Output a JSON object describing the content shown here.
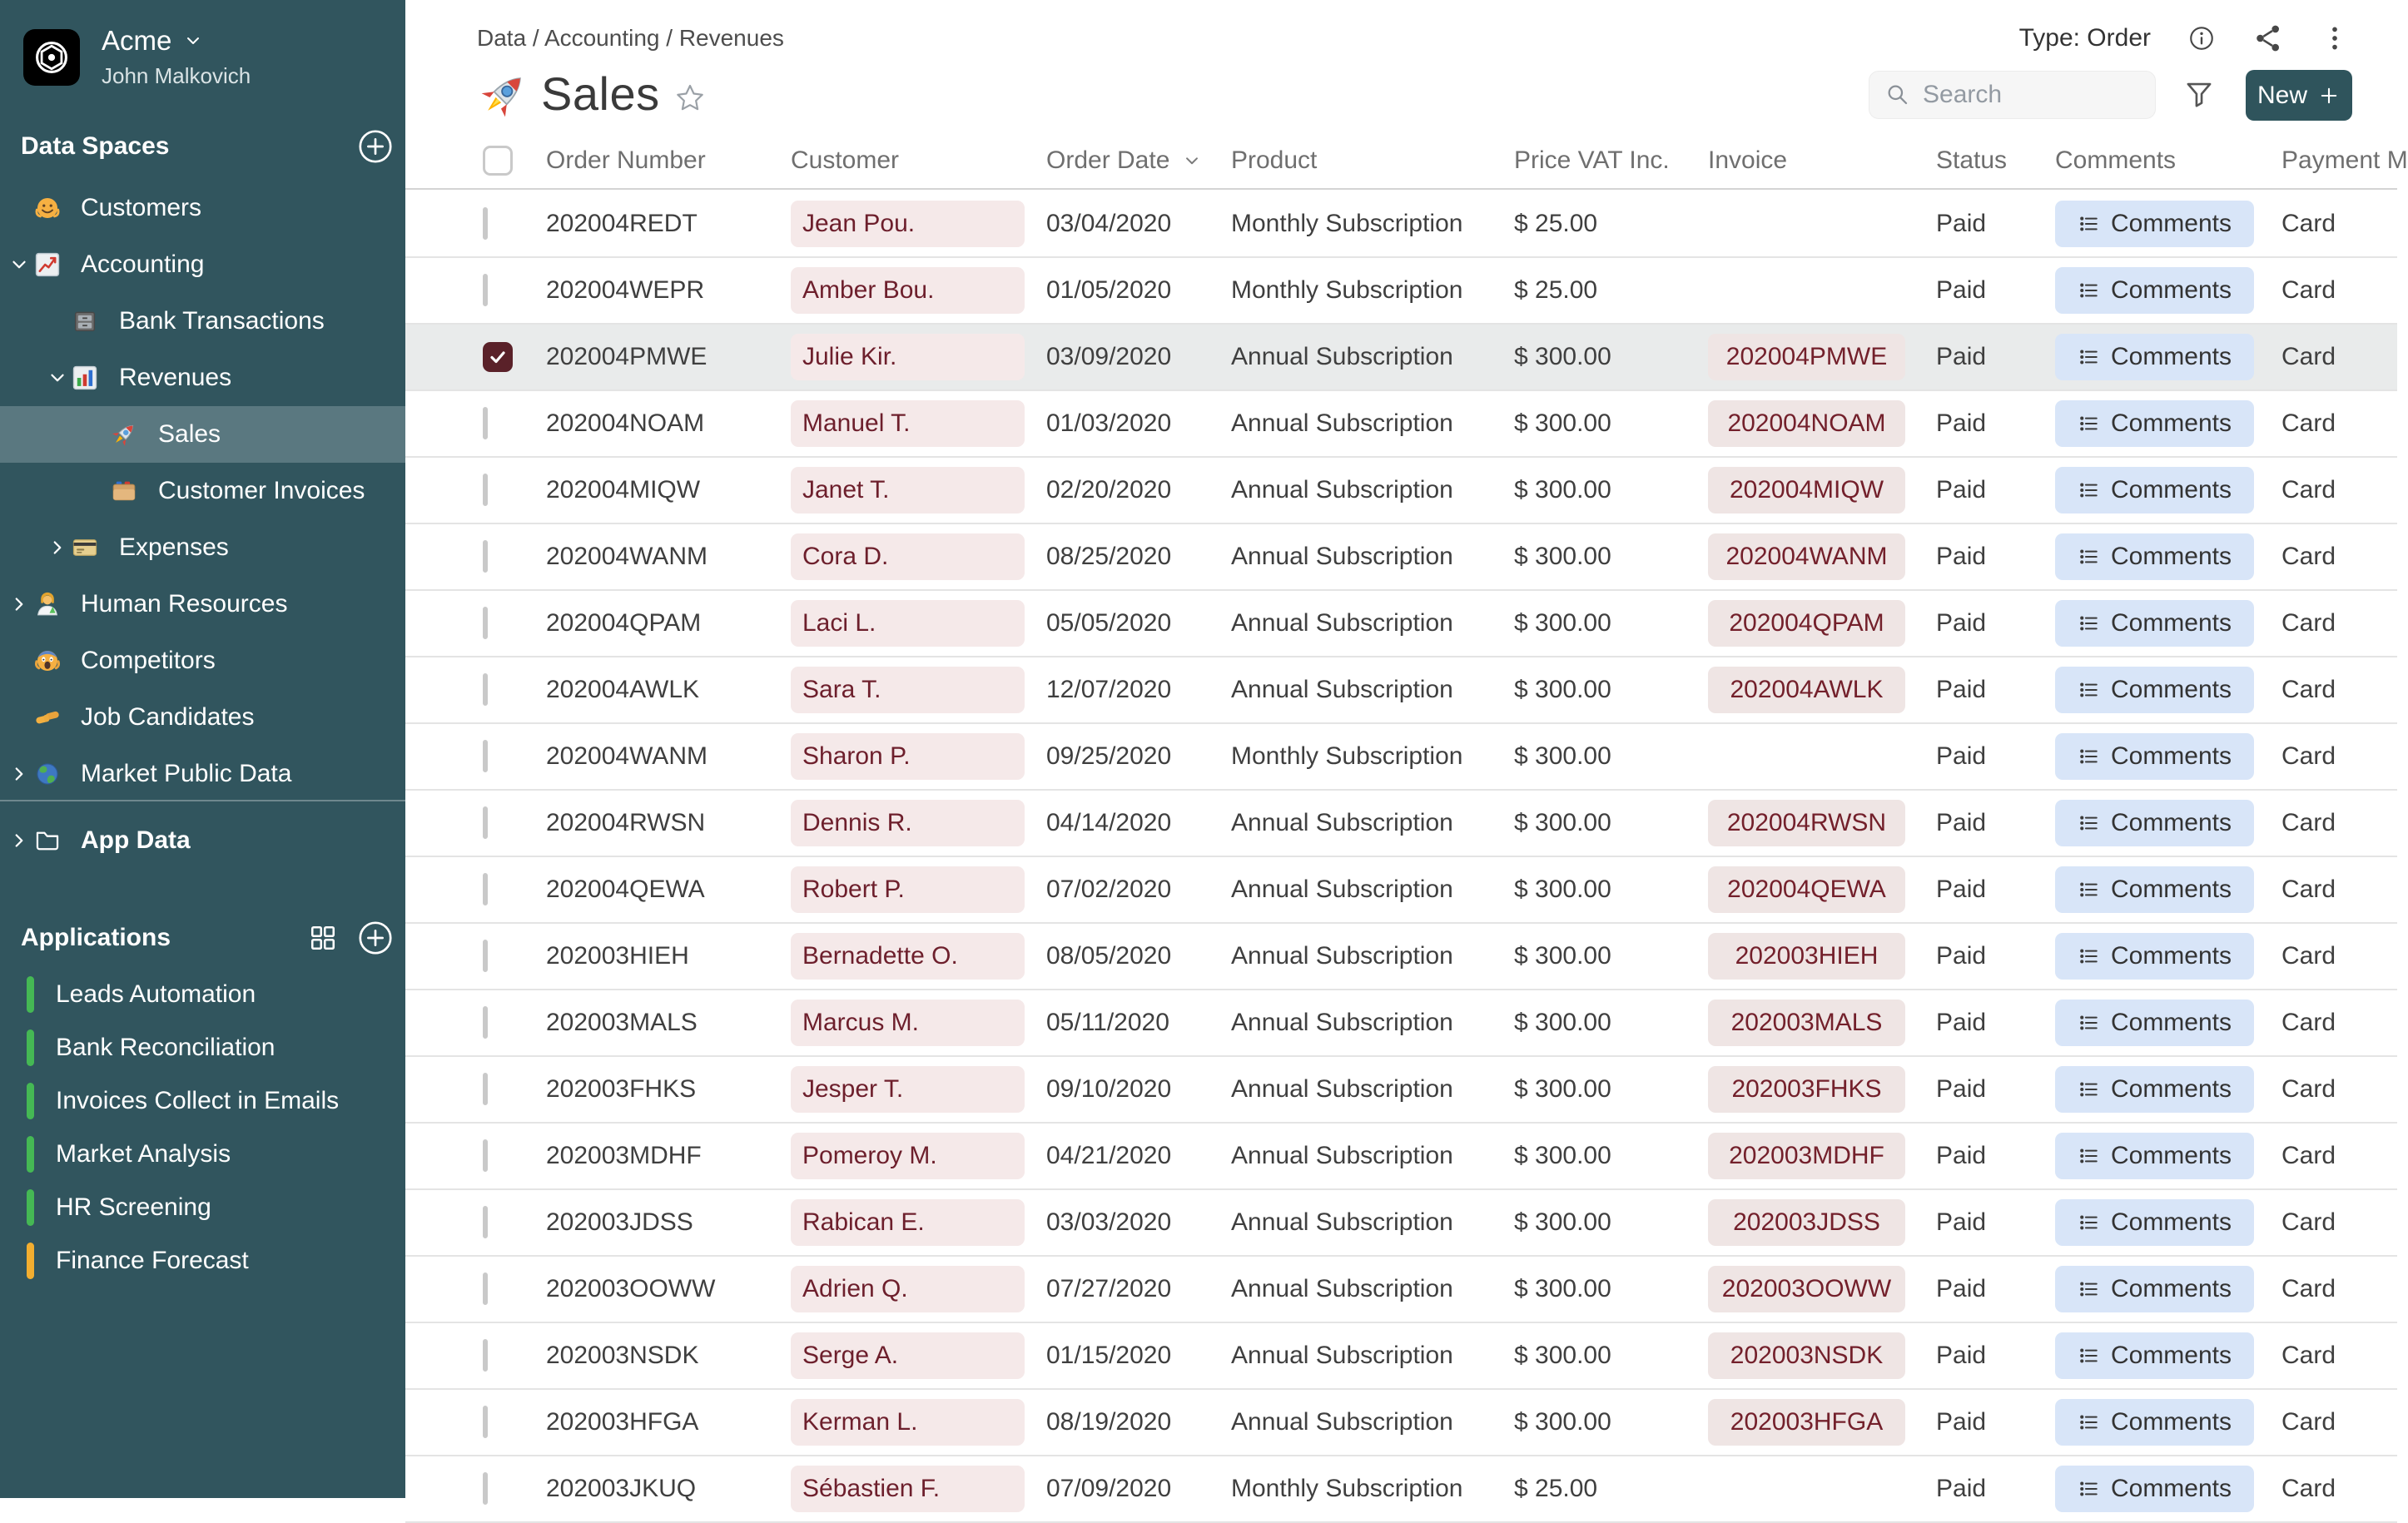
{
  "colors": {
    "sidebar_bg": "#31555e",
    "sidebar_selected": "#5a7880",
    "accent_teal": "#2f545c",
    "customer_chip_bg": "#f5e9e9",
    "customer_chip_text": "#6d1f2c",
    "invoice_chip_bg": "#efe5e4",
    "invoice_chip_text": "#73202b",
    "comments_chip_bg": "#d8e5f8",
    "checkbox_checked": "#5a2129",
    "app_green": "#45b854",
    "app_amber": "#f2ae30"
  },
  "sidebar": {
    "workspace": {
      "name": "Acme",
      "user": "John Malkovich"
    },
    "data_spaces": {
      "title": "Data Spaces",
      "items": [
        {
          "label": "Customers",
          "icon": "hugging-face-emoji",
          "level": 1,
          "expand": null,
          "selected": false
        },
        {
          "label": "Accounting",
          "icon": "chart-increasing-emoji",
          "level": 1,
          "expand": "open",
          "selected": false
        },
        {
          "label": "Bank Transactions",
          "icon": "card-file-box-emoji",
          "level": 2,
          "expand": null,
          "selected": false
        },
        {
          "label": "Revenues",
          "icon": "bar-chart-emoji",
          "level": 2,
          "expand": "open",
          "selected": false
        },
        {
          "label": "Sales",
          "icon": "rocket-emoji",
          "level": 3,
          "expand": null,
          "selected": true
        },
        {
          "label": "Customer Invoices",
          "icon": "card-index-dividers-emoji",
          "level": 3,
          "expand": null,
          "selected": false
        },
        {
          "label": "Expenses",
          "icon": "credit-card-emoji",
          "level": 2,
          "expand": "closed",
          "selected": false
        },
        {
          "label": "Human Resources",
          "icon": "woman-scientist-emoji",
          "level": 1,
          "expand": "closed",
          "selected": false
        },
        {
          "label": "Competitors",
          "icon": "scream-face-emoji",
          "level": 1,
          "expand": null,
          "selected": false
        },
        {
          "label": "Job Candidates",
          "icon": "handshake-emoji",
          "level": 1,
          "expand": null,
          "selected": false
        },
        {
          "label": "Market Public Data",
          "icon": "globe-emoji",
          "level": 1,
          "expand": "closed",
          "selected": false
        }
      ],
      "app_data": {
        "label": "App Data",
        "icon": "folder-icon",
        "expand": "closed"
      }
    },
    "applications": {
      "title": "Applications",
      "items": [
        {
          "label": "Leads Automation",
          "color": "#45b854"
        },
        {
          "label": "Bank Reconciliation",
          "color": "#45b854"
        },
        {
          "label": "Invoices Collect in Emails",
          "color": "#45b854"
        },
        {
          "label": "Market Analysis",
          "color": "#45b854"
        },
        {
          "label": "HR Screening",
          "color": "#45b854"
        },
        {
          "label": "Finance Forecast",
          "color": "#f2ae30"
        }
      ]
    }
  },
  "header": {
    "breadcrumb": "Data / Accounting / Revenues",
    "title": "Sales",
    "type_label": "Type: Order",
    "search_placeholder": "Search",
    "new_label": "New"
  },
  "table": {
    "columns": [
      {
        "label": "Order Number",
        "sorted": false
      },
      {
        "label": "Customer",
        "sorted": false
      },
      {
        "label": "Order Date",
        "sorted": true
      },
      {
        "label": "Product",
        "sorted": false
      },
      {
        "label": "Price VAT Inc.",
        "sorted": false
      },
      {
        "label": "Invoice",
        "sorted": false
      },
      {
        "label": "Status",
        "sorted": false
      },
      {
        "label": "Comments",
        "sorted": false
      },
      {
        "label": "Payment M",
        "sorted": false
      }
    ],
    "comments_label": "Comments",
    "rows": [
      {
        "order": "202004REDT",
        "customer": "Jean Pou.",
        "date": "03/04/2020",
        "product": "Monthly Subscription",
        "price": "$ 25.00",
        "invoice": "",
        "status": "Paid",
        "payment": "Card",
        "checked": false,
        "selected": false
      },
      {
        "order": "202004WEPR",
        "customer": "Amber Bou.",
        "date": "01/05/2020",
        "product": "Monthly Subscription",
        "price": "$ 25.00",
        "invoice": "",
        "status": "Paid",
        "payment": "Card",
        "checked": false,
        "selected": false
      },
      {
        "order": "202004PMWE",
        "customer": "Julie Kir.",
        "date": "03/09/2020",
        "product": "Annual Subscription",
        "price": "$ 300.00",
        "invoice": "202004PMWE",
        "status": "Paid",
        "payment": "Card",
        "checked": true,
        "selected": true
      },
      {
        "order": "202004NOAM",
        "customer": "Manuel T.",
        "date": "01/03/2020",
        "product": "Annual Subscription",
        "price": "$ 300.00",
        "invoice": "202004NOAM",
        "status": "Paid",
        "payment": "Card",
        "checked": false,
        "selected": false
      },
      {
        "order": "202004MIQW",
        "customer": "Janet T.",
        "date": "02/20/2020",
        "product": "Annual Subscription",
        "price": "$ 300.00",
        "invoice": "202004MIQW",
        "status": "Paid",
        "payment": "Card",
        "checked": false,
        "selected": false
      },
      {
        "order": "202004WANM",
        "customer": "Cora D.",
        "date": "08/25/2020",
        "product": "Annual Subscription",
        "price": "$ 300.00",
        "invoice": "202004WANM",
        "status": "Paid",
        "payment": "Card",
        "checked": false,
        "selected": false
      },
      {
        "order": "202004QPAM",
        "customer": "Laci L.",
        "date": "05/05/2020",
        "product": "Annual Subscription",
        "price": "$ 300.00",
        "invoice": "202004QPAM",
        "status": "Paid",
        "payment": "Card",
        "checked": false,
        "selected": false
      },
      {
        "order": "202004AWLK",
        "customer": "Sara T.",
        "date": "12/07/2020",
        "product": "Annual Subscription",
        "price": "$ 300.00",
        "invoice": "202004AWLK",
        "status": "Paid",
        "payment": "Card",
        "checked": false,
        "selected": false
      },
      {
        "order": "202004WANM",
        "customer": "Sharon P.",
        "date": "09/25/2020",
        "product": "Monthly Subscription",
        "price": "$ 300.00",
        "invoice": "",
        "status": "Paid",
        "payment": "Card",
        "checked": false,
        "selected": false
      },
      {
        "order": "202004RWSN",
        "customer": "Dennis R.",
        "date": "04/14/2020",
        "product": "Annual Subscription",
        "price": "$ 300.00",
        "invoice": "202004RWSN",
        "status": "Paid",
        "payment": "Card",
        "checked": false,
        "selected": false
      },
      {
        "order": "202004QEWA",
        "customer": "Robert P.",
        "date": "07/02/2020",
        "product": "Annual Subscription",
        "price": "$ 300.00",
        "invoice": "202004QEWA",
        "status": "Paid",
        "payment": "Card",
        "checked": false,
        "selected": false
      },
      {
        "order": "202003HIEH",
        "customer": "Bernadette O.",
        "date": "08/05/2020",
        "product": "Annual Subscription",
        "price": "$ 300.00",
        "invoice": "202003HIEH",
        "status": "Paid",
        "payment": "Card",
        "checked": false,
        "selected": false
      },
      {
        "order": "202003MALS",
        "customer": "Marcus M.",
        "date": "05/11/2020",
        "product": "Annual Subscription",
        "price": "$ 300.00",
        "invoice": "202003MALS",
        "status": "Paid",
        "payment": "Card",
        "checked": false,
        "selected": false
      },
      {
        "order": "202003FHKS",
        "customer": "Jesper T.",
        "date": "09/10/2020",
        "product": "Annual Subscription",
        "price": "$ 300.00",
        "invoice": "202003FHKS",
        "status": "Paid",
        "payment": "Card",
        "checked": false,
        "selected": false
      },
      {
        "order": "202003MDHF",
        "customer": "Pomeroy M.",
        "date": "04/21/2020",
        "product": "Annual Subscription",
        "price": "$ 300.00",
        "invoice": "202003MDHF",
        "status": "Paid",
        "payment": "Card",
        "checked": false,
        "selected": false
      },
      {
        "order": "202003JDSS",
        "customer": "Rabican E.",
        "date": "03/03/2020",
        "product": "Annual Subscription",
        "price": "$ 300.00",
        "invoice": "202003JDSS",
        "status": "Paid",
        "payment": "Card",
        "checked": false,
        "selected": false
      },
      {
        "order": "202003OOWW",
        "customer": "Adrien Q.",
        "date": "07/27/2020",
        "product": "Annual Subscription",
        "price": "$ 300.00",
        "invoice": "202003OOWW",
        "status": "Paid",
        "payment": "Card",
        "checked": false,
        "selected": false
      },
      {
        "order": "202003NSDK",
        "customer": "Serge A.",
        "date": "01/15/2020",
        "product": "Annual Subscription",
        "price": "$ 300.00",
        "invoice": "202003NSDK",
        "status": "Paid",
        "payment": "Card",
        "checked": false,
        "selected": false
      },
      {
        "order": "202003HFGA",
        "customer": "Kerman L.",
        "date": "08/19/2020",
        "product": "Annual Subscription",
        "price": "$ 300.00",
        "invoice": "202003HFGA",
        "status": "Paid",
        "payment": "Card",
        "checked": false,
        "selected": false
      },
      {
        "order": "202003JKUQ",
        "customer": "Sébastien F.",
        "date": "07/09/2020",
        "product": "Monthly Subscription",
        "price": "$ 25.00",
        "invoice": "",
        "status": "Paid",
        "payment": "Card",
        "checked": false,
        "selected": false
      }
    ]
  }
}
